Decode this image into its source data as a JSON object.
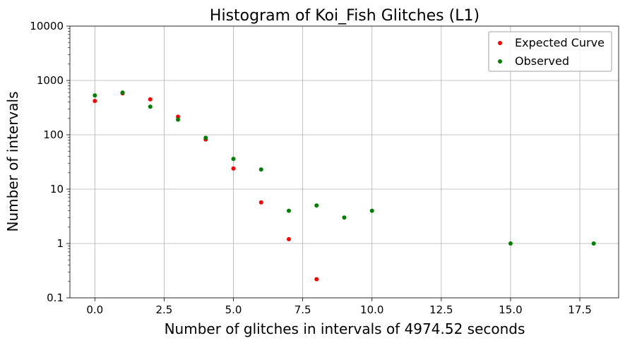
{
  "chart_data": {
    "type": "scatter",
    "title": "Histogram of Koi_Fish Glitches (L1)",
    "xlabel": "Number of glitches in intervals of 4974.52 seconds",
    "ylabel": "Number of intervals",
    "xlim": [
      -0.9,
      18.9
    ],
    "ylim": [
      0.1,
      10000
    ],
    "yscale": "log",
    "grid": true,
    "legend_position": "top-right",
    "x_ticks": [
      0.0,
      2.5,
      5.0,
      7.5,
      10.0,
      12.5,
      15.0,
      17.5
    ],
    "x_tick_labels": [
      "0.0",
      "2.5",
      "5.0",
      "7.5",
      "10.0",
      "12.5",
      "15.0",
      "17.5"
    ],
    "y_ticks": [
      0.1,
      1,
      10,
      100,
      1000,
      10000
    ],
    "y_tick_labels": [
      "0.1",
      "1",
      "10",
      "100",
      "1000",
      "10000"
    ],
    "series": [
      {
        "name": "Expected Curve",
        "color": "#ff0000",
        "points": [
          {
            "x": 0,
            "y": 420
          },
          {
            "x": 1,
            "y": 580
          },
          {
            "x": 2,
            "y": 450
          },
          {
            "x": 3,
            "y": 215
          },
          {
            "x": 4,
            "y": 82
          },
          {
            "x": 5,
            "y": 24
          },
          {
            "x": 6,
            "y": 5.7
          },
          {
            "x": 7,
            "y": 1.2
          },
          {
            "x": 8,
            "y": 0.22
          }
        ]
      },
      {
        "name": "Observed",
        "color": "#008000",
        "points": [
          {
            "x": 0,
            "y": 530
          },
          {
            "x": 1,
            "y": 600
          },
          {
            "x": 2,
            "y": 330
          },
          {
            "x": 3,
            "y": 190
          },
          {
            "x": 4,
            "y": 88
          },
          {
            "x": 5,
            "y": 36
          },
          {
            "x": 6,
            "y": 23
          },
          {
            "x": 7,
            "y": 4
          },
          {
            "x": 8,
            "y": 5
          },
          {
            "x": 9,
            "y": 3
          },
          {
            "x": 10,
            "y": 4
          },
          {
            "x": 15,
            "y": 1
          },
          {
            "x": 18,
            "y": 1
          }
        ]
      }
    ]
  }
}
